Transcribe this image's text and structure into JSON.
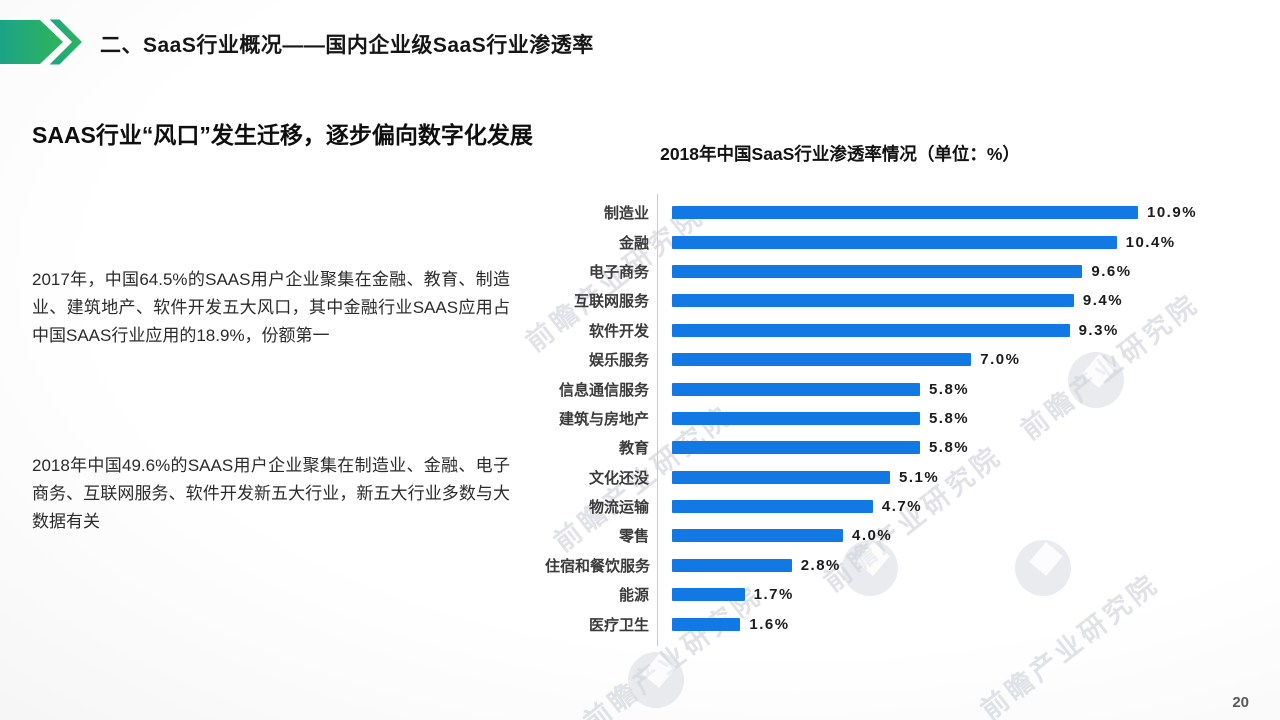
{
  "header": {
    "title": "二、SaaS行业概况——国内企业级SaaS行业渗透率"
  },
  "subtitle": "SAAS行业“风口”发生迁移，逐步偏向数字化发展",
  "paragraphs": {
    "p1": "2017年，中国64.5%的SAAS用户企业聚集在金融、教育、制造业、建筑地产、软件开发五大风口，其中金融行业SAAS应用占中国SAAS行业应用的18.9%，份额第一",
    "p2": "2018年中国49.6%的SAAS用户企业聚集在制造业、金融、电子商务、互联网服务、软件开发新五大行业，新五大行业多数与大数据有关"
  },
  "chart_data": {
    "type": "bar",
    "orientation": "horizontal",
    "title": "2018年中国SaaS行业渗透率情况（单位：%）",
    "unit": "%",
    "categories": [
      "制造业",
      "金融",
      "电子商务",
      "互联网服务",
      "软件开发",
      "娱乐服务",
      "信息通信服务",
      "建筑与房地产",
      "教育",
      "文化还没",
      "物流运输",
      "零售",
      "住宿和餐饮服务",
      "能源",
      "医疗卫生"
    ],
    "values": [
      10.9,
      10.4,
      9.6,
      9.4,
      9.3,
      7.0,
      5.8,
      5.8,
      5.8,
      5.1,
      4.7,
      4.0,
      2.8,
      1.7,
      1.6
    ],
    "xlim": [
      0,
      11.5
    ],
    "grid": false,
    "legend": "none",
    "bar_color": "#1278E3",
    "value_labels": [
      "10.9%",
      "10.4%",
      "9.6%",
      "9.4%",
      "9.3%",
      "7.0%",
      "5.8%",
      "5.8%",
      "5.8%",
      "5.1%",
      "4.7%",
      "4.0%",
      "2.8%",
      "1.7%",
      "1.6%"
    ]
  },
  "watermark": {
    "text": "前瞻产业研究院"
  },
  "page_number": "20",
  "colors": {
    "accent_gradient_start": "#1CA388",
    "accent_gradient_end": "#2FB45B",
    "bar_blue": "#1278E3"
  }
}
